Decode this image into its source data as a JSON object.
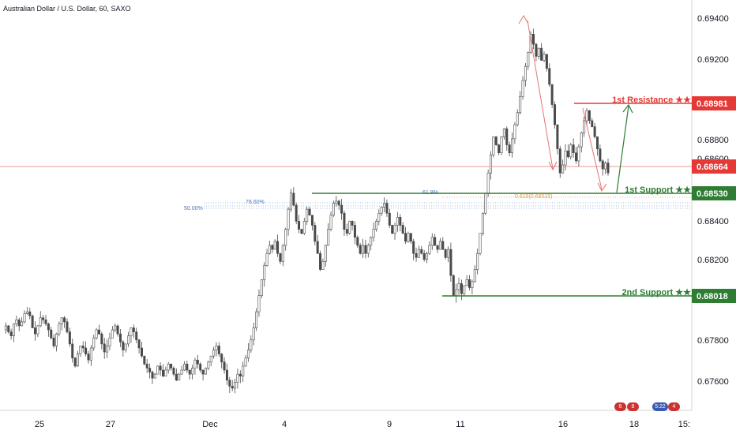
{
  "chart_title": "Australian Dollar / U.S. Dollar, 60, SAXO",
  "price_axis_labels": [
    "0.69400",
    "0.69200",
    "0.68800",
    "0.68600",
    "0.68400",
    "0.68200",
    "0.67800",
    "0.67600"
  ],
  "time_axis_labels": [
    "25",
    "27",
    "Dec",
    "4",
    "9",
    "11",
    "16",
    "18",
    "15:"
  ],
  "colors": {
    "candle": "#4a4a4a",
    "resistance": "#e53935",
    "support": "#2e7d32",
    "current_price": "#e53935",
    "fib_line": "#7fa7d6",
    "fib_text": "#4a77b8",
    "fib_618": "#d9a24d"
  },
  "levels": {
    "first_resistance": {
      "label": "1st Resistance ★★",
      "price_tag": "0.68981",
      "price": 0.68981
    },
    "current": {
      "price_tag": "0.68664",
      "price": 0.68664
    },
    "first_support": {
      "label": "1st Support ★★",
      "price_tag": "0.68530",
      "price": 0.6853
    },
    "second_support": {
      "label": "2nd Support ★★",
      "price_tag": "0.68018",
      "price": 0.68018
    }
  },
  "fib": {
    "label_618": "61.8%",
    "label_50": "50.00%",
    "label_786": "78.60%",
    "label_618_price": "0.618(0.68515)"
  },
  "flags": [
    {
      "text": "6",
      "color": "#cc3333"
    },
    {
      "text": "8",
      "color": "#cc3333"
    },
    {
      "text": "5:22",
      "color": "#3a5bb0"
    },
    {
      "text": "4",
      "color": "#cc3333"
    }
  ],
  "chart_data": {
    "type": "candlestick",
    "symbol": "Australian Dollar / U.S. Dollar, 60, SAXO",
    "ylim": [
      0.6748,
      0.6952
    ],
    "x_labels": [
      "25",
      "27",
      "Dec",
      "4",
      "9",
      "11",
      "16",
      "18",
      "15:"
    ],
    "close_series": [
      0.6788,
      0.679,
      0.6787,
      0.6785,
      0.6791,
      0.6793,
      0.679,
      0.6792,
      0.6796,
      0.6797,
      0.6795,
      0.6789,
      0.6786,
      0.679,
      0.6794,
      0.6793,
      0.6791,
      0.6788,
      0.6784,
      0.678,
      0.6786,
      0.6791,
      0.6794,
      0.6792,
      0.6787,
      0.6781,
      0.6774,
      0.677,
      0.6776,
      0.678,
      0.6779,
      0.6776,
      0.6773,
      0.6779,
      0.6784,
      0.6788,
      0.6786,
      0.6781,
      0.6777,
      0.678,
      0.6784,
      0.6788,
      0.679,
      0.6786,
      0.6782,
      0.6778,
      0.6781,
      0.6785,
      0.6789,
      0.6787,
      0.6783,
      0.6779,
      0.6775,
      0.6771,
      0.6769,
      0.6767,
      0.6764,
      0.6766,
      0.677,
      0.6768,
      0.6765,
      0.6768,
      0.6771,
      0.6769,
      0.6766,
      0.6763,
      0.6766,
      0.6768,
      0.6771,
      0.6768,
      0.6766,
      0.6769,
      0.6773,
      0.6771,
      0.6768,
      0.6766,
      0.6769,
      0.6772,
      0.6775,
      0.6778,
      0.678,
      0.6776,
      0.6772,
      0.6768,
      0.6763,
      0.676,
      0.6759,
      0.6762,
      0.6766,
      0.6765,
      0.677,
      0.6774,
      0.6778,
      0.6783,
      0.6789,
      0.6797,
      0.6805,
      0.6813,
      0.682,
      0.6826,
      0.683,
      0.6828,
      0.6832,
      0.6826,
      0.6822,
      0.683,
      0.6838,
      0.6848,
      0.6856,
      0.685,
      0.6842,
      0.6838,
      0.6836,
      0.6842,
      0.6848,
      0.6845,
      0.684,
      0.6832,
      0.6826,
      0.6818,
      0.6822,
      0.683,
      0.6838,
      0.6845,
      0.6851,
      0.6852,
      0.685,
      0.6846,
      0.6838,
      0.6836,
      0.6842,
      0.684,
      0.6834,
      0.683,
      0.6826,
      0.683,
      0.6826,
      0.683,
      0.6834,
      0.6838,
      0.6842,
      0.6846,
      0.6849,
      0.6851,
      0.6846,
      0.684,
      0.6836,
      0.684,
      0.6844,
      0.684,
      0.6836,
      0.6832,
      0.6836,
      0.6832,
      0.6826,
      0.6824,
      0.6828,
      0.6826,
      0.6823,
      0.6826,
      0.683,
      0.6834,
      0.683,
      0.6828,
      0.6832,
      0.6828,
      0.6824,
      0.6828,
      0.6815,
      0.6805,
      0.6808,
      0.6811,
      0.6806,
      0.681,
      0.6813,
      0.6809,
      0.6812,
      0.6818,
      0.6826,
      0.6836,
      0.6846,
      0.6856,
      0.6866,
      0.6875,
      0.6884,
      0.688,
      0.6876,
      0.6884,
      0.6888,
      0.688,
      0.6876,
      0.6883,
      0.689,
      0.6896,
      0.6904,
      0.6912,
      0.6919,
      0.6926,
      0.6935,
      0.693,
      0.6924,
      0.6928,
      0.6922,
      0.6925,
      0.6918,
      0.691,
      0.69,
      0.689,
      0.6878,
      0.6866,
      0.687,
      0.6877,
      0.6874,
      0.688,
      0.6876,
      0.6872,
      0.6879,
      0.6886,
      0.6892,
      0.6897,
      0.6892,
      0.6889,
      0.6884,
      0.6878,
      0.6872,
      0.6868,
      0.6871,
      0.6866
    ],
    "annotations": [
      {
        "text": "1st Resistance ★★",
        "price": 0.68981
      },
      {
        "text": "1st Support ★★",
        "price": 0.6853
      },
      {
        "text": "2nd Support ★★",
        "price": 0.68018
      },
      {
        "text": "0.618(0.68515)",
        "price": 0.68515
      }
    ]
  }
}
